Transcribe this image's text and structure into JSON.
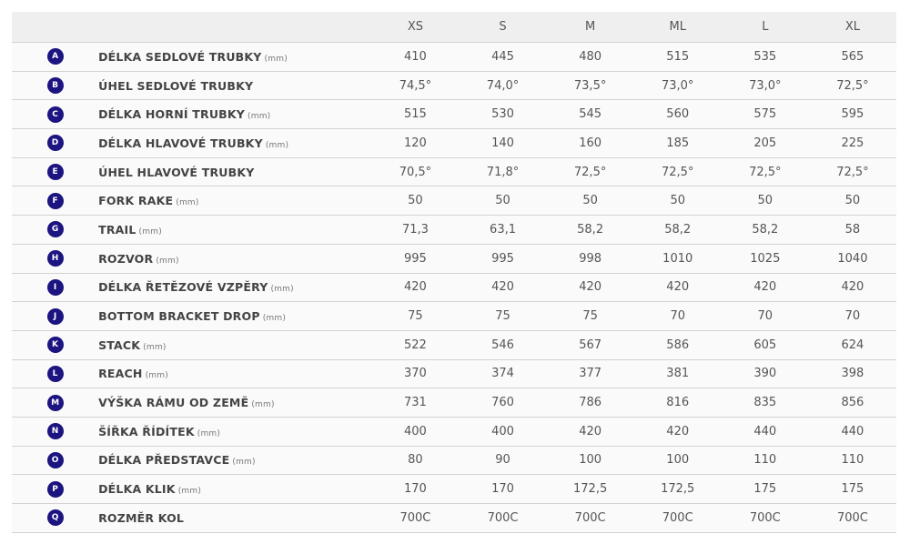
{
  "columns": [
    "XS",
    "S",
    "M",
    "ML",
    "L",
    "XL"
  ],
  "rows": [
    {
      "letter": "A",
      "label": "DÉLKA SEDLOVÉ TRUBKY",
      "unit": "(mm)",
      "values": [
        "410",
        "445",
        "480",
        "515",
        "535",
        "565"
      ]
    },
    {
      "letter": "B",
      "label": "ÚHEL SEDLOVÉ TRUBKY",
      "unit": "",
      "values": [
        "74,5°",
        "74,0°",
        "73,5°",
        "73,0°",
        "73,0°",
        "72,5°"
      ]
    },
    {
      "letter": "C",
      "label": "DÉLKA HORNÍ TRUBKY",
      "unit": "(mm)",
      "values": [
        "515",
        "530",
        "545",
        "560",
        "575",
        "595"
      ]
    },
    {
      "letter": "D",
      "label": "DÉLKA HLAVOVÉ TRUBKY",
      "unit": "(mm)",
      "values": [
        "120",
        "140",
        "160",
        "185",
        "205",
        "225"
      ]
    },
    {
      "letter": "E",
      "label": "ÚHEL HLAVOVÉ TRUBKY",
      "unit": "",
      "values": [
        "70,5°",
        "71,8°",
        "72,5°",
        "72,5°",
        "72,5°",
        "72,5°"
      ]
    },
    {
      "letter": "F",
      "label": "FORK RAKE",
      "unit": "(mm)",
      "values": [
        "50",
        "50",
        "50",
        "50",
        "50",
        "50"
      ]
    },
    {
      "letter": "G",
      "label": "TRAIL",
      "unit": "(mm)",
      "values": [
        "71,3",
        "63,1",
        "58,2",
        "58,2",
        "58,2",
        "58"
      ]
    },
    {
      "letter": "H",
      "label": "ROZVOR",
      "unit": "(mm)",
      "values": [
        "995",
        "995",
        "998",
        "1010",
        "1025",
        "1040"
      ]
    },
    {
      "letter": "I",
      "label": "DÉLKA ŘETĚZOVÉ VZPĚRY",
      "unit": "(mm)",
      "values": [
        "420",
        "420",
        "420",
        "420",
        "420",
        "420"
      ]
    },
    {
      "letter": "J",
      "label": "BOTTOM BRACKET DROP",
      "unit": "(mm)",
      "values": [
        "75",
        "75",
        "75",
        "70",
        "70",
        "70"
      ]
    },
    {
      "letter": "K",
      "label": "STACK",
      "unit": "(mm)",
      "values": [
        "522",
        "546",
        "567",
        "586",
        "605",
        "624"
      ]
    },
    {
      "letter": "L",
      "label": "REACH",
      "unit": "(mm)",
      "values": [
        "370",
        "374",
        "377",
        "381",
        "390",
        "398"
      ]
    },
    {
      "letter": "M",
      "label": "VÝŠKA RÁMU OD ZEMĚ",
      "unit": "(mm)",
      "values": [
        "731",
        "760",
        "786",
        "816",
        "835",
        "856"
      ]
    },
    {
      "letter": "N",
      "label": "ŠÍŘKA ŘÍDÍTEK",
      "unit": "(mm)",
      "values": [
        "400",
        "400",
        "420",
        "420",
        "440",
        "440"
      ]
    },
    {
      "letter": "O",
      "label": "DÉLKA PŘEDSTAVCE",
      "unit": "(mm)",
      "values": [
        "80",
        "90",
        "100",
        "100",
        "110",
        "110"
      ]
    },
    {
      "letter": "P",
      "label": "DÉLKA KLIK",
      "unit": "(mm)",
      "values": [
        "170",
        "170",
        "172,5",
        "172,5",
        "175",
        "175"
      ]
    },
    {
      "letter": "Q",
      "label": "ROZMĚR KOL",
      "unit": "",
      "values": [
        "700C",
        "700C",
        "700C",
        "700C",
        "700C",
        "700C"
      ]
    }
  ],
  "colors": {
    "badge": "#1c1480",
    "header_bg": "#efefef"
  }
}
